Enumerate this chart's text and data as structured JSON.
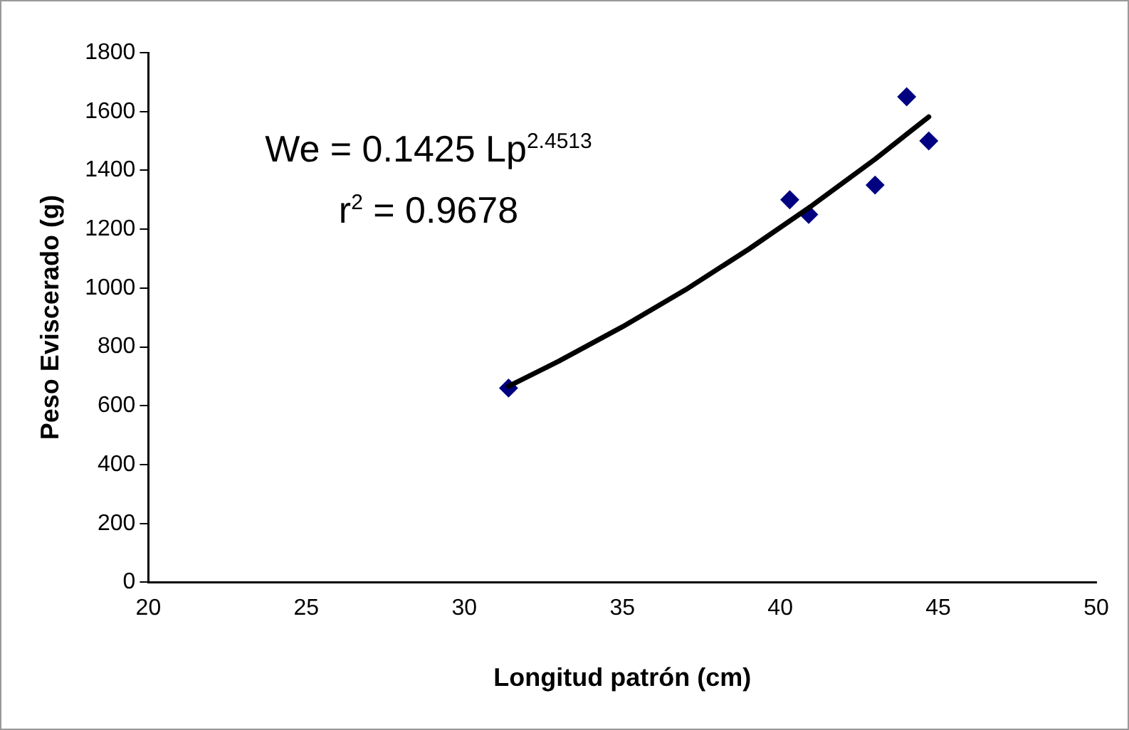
{
  "chart_data": {
    "type": "scatter",
    "xlabel": "Longitud patrón (cm)",
    "ylabel": "Peso Eviscerado (g)",
    "xlim": [
      20,
      50
    ],
    "xticks": [
      20,
      25,
      30,
      35,
      40,
      45,
      50
    ],
    "ylim": [
      0,
      1800
    ],
    "yticks": [
      0,
      200,
      400,
      600,
      800,
      1000,
      1200,
      1400,
      1600,
      1800
    ],
    "grid": false,
    "legend": false,
    "marker": "diamond",
    "series": [
      {
        "type": "scatter",
        "color": "#000080",
        "x": [
          31.4,
          40.3,
          40.9,
          43.0,
          44.0,
          44.7
        ],
        "values": [
          660,
          1300,
          1250,
          1350,
          1650,
          1500
        ]
      },
      {
        "type": "line",
        "color": "#000000",
        "marker": "none",
        "x": [
          31.4,
          33,
          35,
          37,
          39,
          41,
          43,
          44.7
        ],
        "values": [
          666,
          752,
          868,
          994,
          1132,
          1280,
          1438,
          1582
        ]
      }
    ],
    "annotations": [
      "We = 0.1425 Lp$^{2.4513}$",
      "r$^{2}$ = 0.9678"
    ]
  }
}
